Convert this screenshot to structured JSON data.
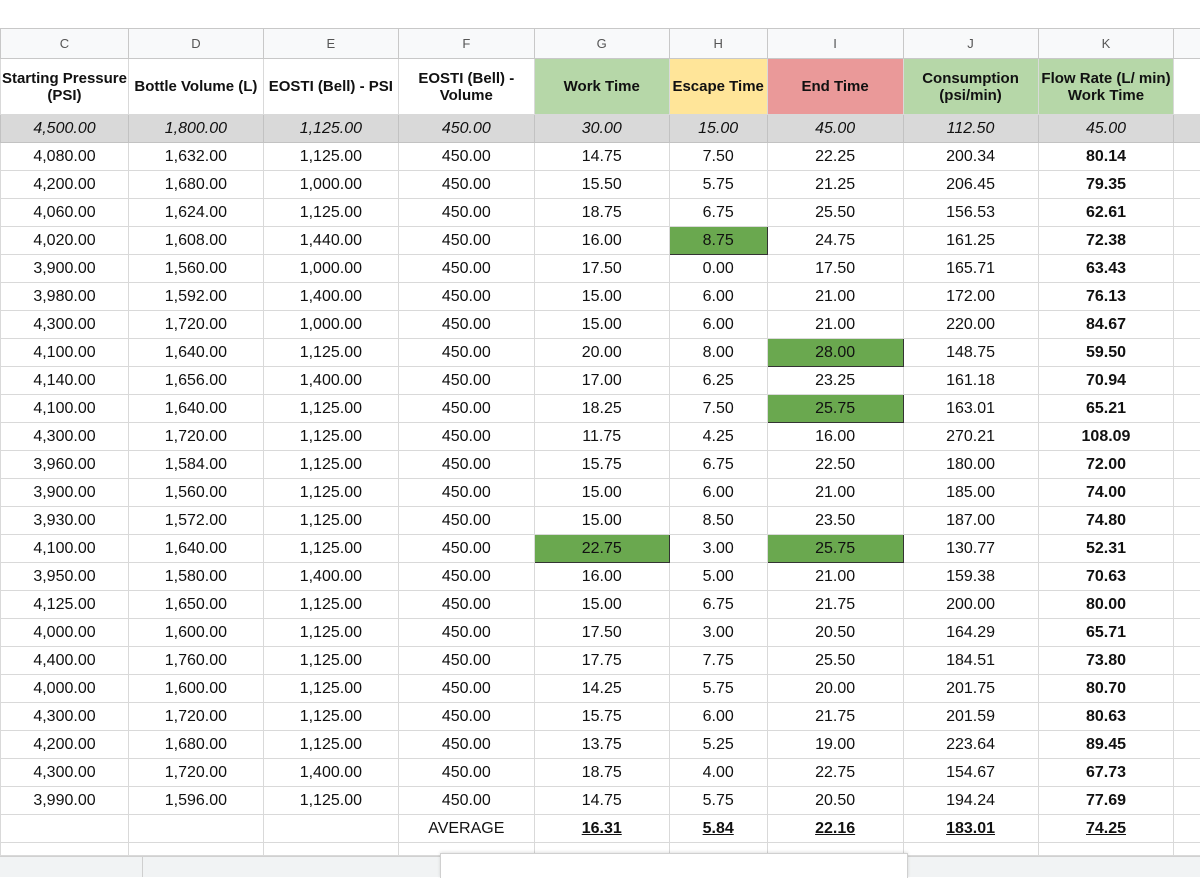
{
  "columns": [
    "C",
    "D",
    "E",
    "F",
    "G",
    "H",
    "I",
    "J",
    "K"
  ],
  "headers": [
    "Starting Pressure (PSI)",
    "Bottle Volume (L)",
    "EOSTI (Bell) - PSI",
    "EOSTI (Bell) - Volume",
    "Work Time",
    "Escape Time",
    "End Time",
    "Consumption (psi/min)",
    "Flow Rate (L/ min) Work Time"
  ],
  "header_colors": {
    "work": "#b6d7a8",
    "escape": "#ffe599",
    "end": "#ea9999",
    "consumption": "#b6d7a8",
    "flow": "#b6d7a8",
    "highlight": "#6aa84f",
    "reference_row": "#d9d9d9"
  },
  "reference_row": [
    "4,500.00",
    "1,800.00",
    "1,125.00",
    "450.00",
    "30.00",
    "15.00",
    "45.00",
    "112.50",
    "45.00"
  ],
  "rows": [
    [
      "4,080.00",
      "1,632.00",
      "1,125.00",
      "450.00",
      "14.75",
      "7.50",
      "22.25",
      "200.34",
      "80.14"
    ],
    [
      "4,200.00",
      "1,680.00",
      "1,000.00",
      "450.00",
      "15.50",
      "5.75",
      "21.25",
      "206.45",
      "79.35"
    ],
    [
      "4,060.00",
      "1,624.00",
      "1,125.00",
      "450.00",
      "18.75",
      "6.75",
      "25.50",
      "156.53",
      "62.61"
    ],
    [
      "4,020.00",
      "1,608.00",
      "1,440.00",
      "450.00",
      "16.00",
      "8.75",
      "24.75",
      "161.25",
      "72.38"
    ],
    [
      "3,900.00",
      "1,560.00",
      "1,000.00",
      "450.00",
      "17.50",
      "0.00",
      "17.50",
      "165.71",
      "63.43"
    ],
    [
      "3,980.00",
      "1,592.00",
      "1,400.00",
      "450.00",
      "15.00",
      "6.00",
      "21.00",
      "172.00",
      "76.13"
    ],
    [
      "4,300.00",
      "1,720.00",
      "1,000.00",
      "450.00",
      "15.00",
      "6.00",
      "21.00",
      "220.00",
      "84.67"
    ],
    [
      "4,100.00",
      "1,640.00",
      "1,125.00",
      "450.00",
      "20.00",
      "8.00",
      "28.00",
      "148.75",
      "59.50"
    ],
    [
      "4,140.00",
      "1,656.00",
      "1,400.00",
      "450.00",
      "17.00",
      "6.25",
      "23.25",
      "161.18",
      "70.94"
    ],
    [
      "4,100.00",
      "1,640.00",
      "1,125.00",
      "450.00",
      "18.25",
      "7.50",
      "25.75",
      "163.01",
      "65.21"
    ],
    [
      "4,300.00",
      "1,720.00",
      "1,125.00",
      "450.00",
      "11.75",
      "4.25",
      "16.00",
      "270.21",
      "108.09"
    ],
    [
      "3,960.00",
      "1,584.00",
      "1,125.00",
      "450.00",
      "15.75",
      "6.75",
      "22.50",
      "180.00",
      "72.00"
    ],
    [
      "3,900.00",
      "1,560.00",
      "1,125.00",
      "450.00",
      "15.00",
      "6.00",
      "21.00",
      "185.00",
      "74.00"
    ],
    [
      "3,930.00",
      "1,572.00",
      "1,125.00",
      "450.00",
      "15.00",
      "8.50",
      "23.50",
      "187.00",
      "74.80"
    ],
    [
      "4,100.00",
      "1,640.00",
      "1,125.00",
      "450.00",
      "22.75",
      "3.00",
      "25.75",
      "130.77",
      "52.31"
    ],
    [
      "3,950.00",
      "1,580.00",
      "1,400.00",
      "450.00",
      "16.00",
      "5.00",
      "21.00",
      "159.38",
      "70.63"
    ],
    [
      "4,125.00",
      "1,650.00",
      "1,125.00",
      "450.00",
      "15.00",
      "6.75",
      "21.75",
      "200.00",
      "80.00"
    ],
    [
      "4,000.00",
      "1,600.00",
      "1,125.00",
      "450.00",
      "17.50",
      "3.00",
      "20.50",
      "164.29",
      "65.71"
    ],
    [
      "4,400.00",
      "1,760.00",
      "1,125.00",
      "450.00",
      "17.75",
      "7.75",
      "25.50",
      "184.51",
      "73.80"
    ],
    [
      "4,000.00",
      "1,600.00",
      "1,125.00",
      "450.00",
      "14.25",
      "5.75",
      "20.00",
      "201.75",
      "80.70"
    ],
    [
      "4,300.00",
      "1,720.00",
      "1,125.00",
      "450.00",
      "15.75",
      "6.00",
      "21.75",
      "201.59",
      "80.63"
    ],
    [
      "4,200.00",
      "1,680.00",
      "1,125.00",
      "450.00",
      "13.75",
      "5.25",
      "19.00",
      "223.64",
      "89.45"
    ],
    [
      "4,300.00",
      "1,720.00",
      "1,400.00",
      "450.00",
      "18.75",
      "4.00",
      "22.75",
      "154.67",
      "67.73"
    ],
    [
      "3,990.00",
      "1,596.00",
      "1,125.00",
      "450.00",
      "14.75",
      "5.75",
      "20.50",
      "194.24",
      "77.69"
    ]
  ],
  "highlighted_cells": [
    {
      "row": 3,
      "col": 5
    },
    {
      "row": 7,
      "col": 6
    },
    {
      "row": 9,
      "col": 6
    },
    {
      "row": 14,
      "col": 4
    },
    {
      "row": 14,
      "col": 6
    }
  ],
  "average": {
    "label": "AVERAGE",
    "values": [
      "16.31",
      "5.84",
      "22.16",
      "183.01",
      "74.25"
    ]
  }
}
